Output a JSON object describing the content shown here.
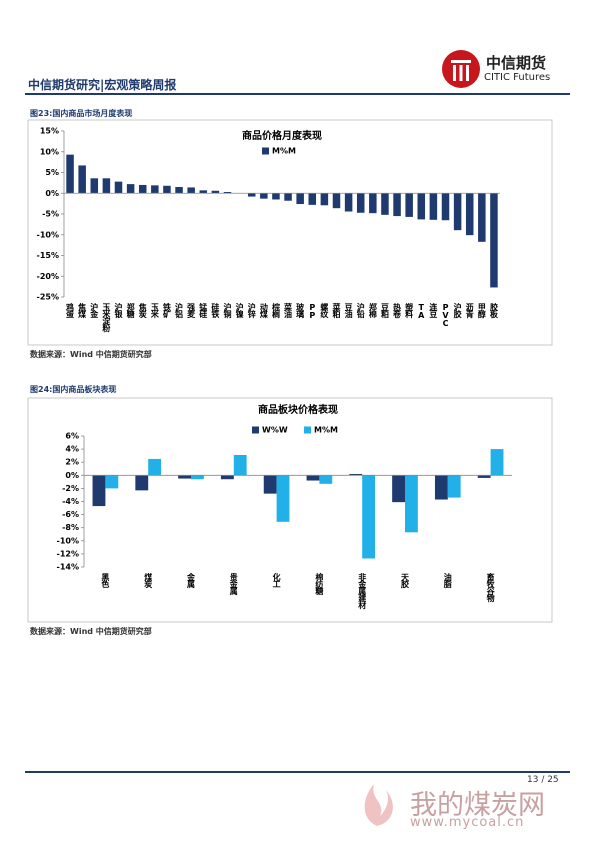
{
  "header": {
    "title": "中信期货研究|宏观策略周报",
    "logo_cn": "中信期货",
    "logo_en": "CITIC Futures"
  },
  "figures": [
    {
      "caption": "图23:国内商品市场月度表现",
      "source": "数据来源：Wind  中信期货研究部"
    },
    {
      "caption": "图24:国内商品板块表现",
      "source": "数据来源：Wind  中信期货研究部"
    }
  ],
  "chart_data": [
    {
      "type": "bar",
      "title": "商品价格月度表现",
      "categories": [
        "鸡蛋",
        "焦煤",
        "沪金",
        "玉米淀粉",
        "沪银",
        "郑糖",
        "焦炭",
        "玉米",
        "铁矿",
        "沪铝",
        "强麦",
        "锰硅",
        "硅铁",
        "沪铜",
        "沪镍",
        "沪锌",
        "动煤",
        "棕榈",
        "菜油",
        "玻璃",
        "PP",
        "螺纹",
        "菜粕",
        "豆油",
        "沪铅",
        "郑棉",
        "豆粕",
        "热卷",
        "塑料",
        "TA",
        "连豆",
        "PVC",
        "沪胶",
        "沥青",
        "甲醇",
        "胶板"
      ],
      "series": [
        {
          "name": "M%M",
          "color": "#1f3a6e",
          "values": [
            9.3,
            6.7,
            3.6,
            3.6,
            2.8,
            2.2,
            2.0,
            1.9,
            1.8,
            1.5,
            1.4,
            0.7,
            0.6,
            0.3,
            0.0,
            -0.8,
            -1.3,
            -1.5,
            -1.8,
            -2.6,
            -2.8,
            -2.9,
            -3.6,
            -4.4,
            -4.7,
            -4.8,
            -5.2,
            -5.5,
            -5.7,
            -6.3,
            -6.4,
            -6.5,
            -8.9,
            -10.1,
            -11.7,
            -22.7
          ]
        }
      ],
      "ylim": [
        -25,
        15
      ],
      "yticks": [
        {
          "value": -25,
          "label": "-25%"
        },
        {
          "value": -20,
          "label": "-20%"
        },
        {
          "value": -15,
          "label": "-15%"
        },
        {
          "value": -10,
          "label": "-10%"
        },
        {
          "value": -5,
          "label": "-5%"
        },
        {
          "value": 0,
          "label": "0%"
        },
        {
          "value": 5,
          "label": "5%"
        },
        {
          "value": 10,
          "label": "10%"
        },
        {
          "value": 15,
          "label": "15%"
        }
      ],
      "grid": false
    },
    {
      "type": "bar",
      "title": "商品板块价格表现",
      "categories": [
        "黑色",
        "煤炭",
        "金属",
        "贵金属",
        "化工",
        "棉纺糖",
        "非金属建材",
        "天胶",
        "油脂",
        "畜牧谷物"
      ],
      "series": [
        {
          "name": "W%W",
          "color": "#1f3a6e",
          "values": [
            -4.7,
            -2.3,
            -0.5,
            -0.6,
            -2.8,
            -0.8,
            0.2,
            -4.1,
            -3.7,
            -0.4
          ]
        },
        {
          "name": "M%M",
          "color": "#22b0e8",
          "values": [
            -2.0,
            2.5,
            -0.6,
            3.1,
            -7.1,
            -1.3,
            -12.7,
            -8.7,
            -3.4,
            4.0
          ]
        }
      ],
      "ylim": [
        -14,
        6
      ],
      "yticks": [
        {
          "value": -14,
          "label": "-14%"
        },
        {
          "value": -12,
          "label": "-12%"
        },
        {
          "value": -10,
          "label": "-10%"
        },
        {
          "value": -8,
          "label": "-8%"
        },
        {
          "value": -6,
          "label": "-6%"
        },
        {
          "value": -4,
          "label": "-4%"
        },
        {
          "value": -2,
          "label": "-2%"
        },
        {
          "value": 0,
          "label": "0%"
        },
        {
          "value": 2,
          "label": "2%"
        },
        {
          "value": 4,
          "label": "4%"
        },
        {
          "value": 6,
          "label": "6%"
        }
      ],
      "grid": false
    }
  ],
  "footer": {
    "page": "13 / 25"
  },
  "watermark": {
    "name": "我的煤炭网",
    "url": "www.mycoal.cn"
  }
}
